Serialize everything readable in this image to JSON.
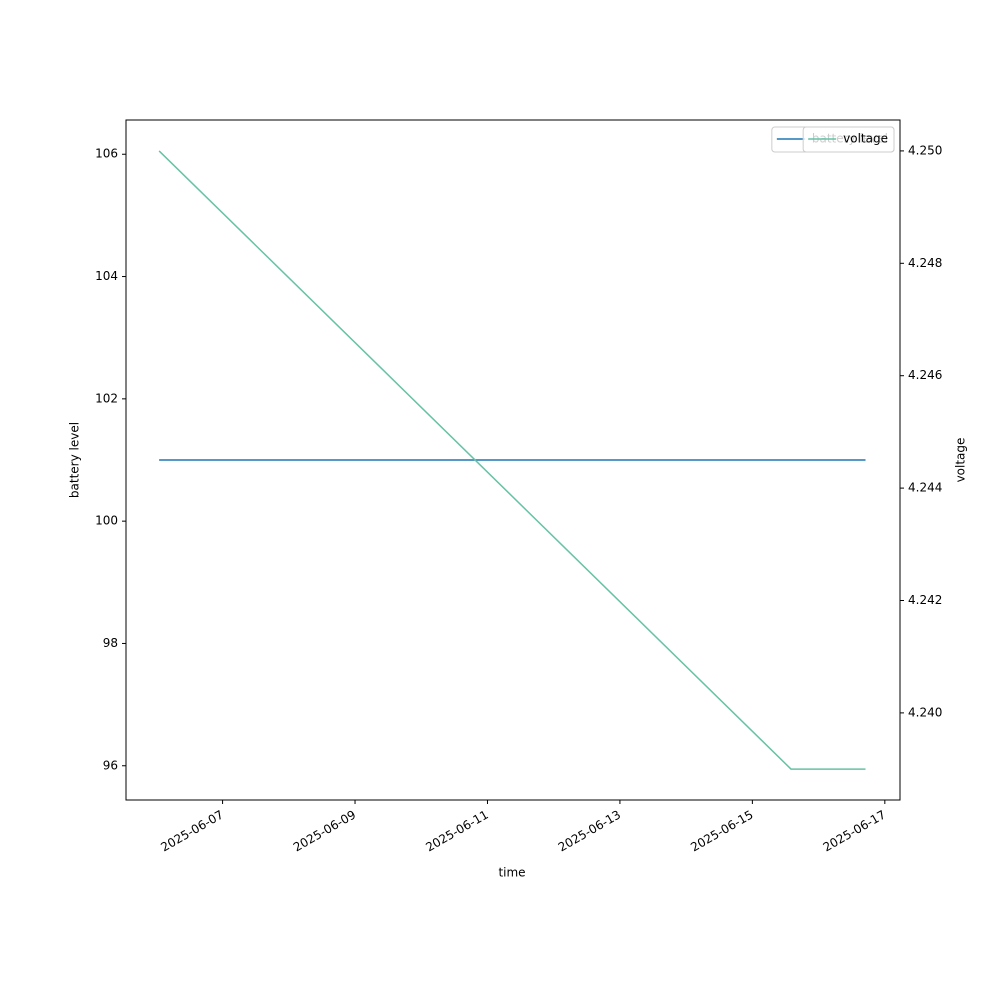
{
  "chart_data": {
    "type": "line",
    "x_label": "time",
    "y_label": "battery level",
    "y2_label": "voltage",
    "x": [
      "2025-06-06T01:00",
      "2025-06-15T14:00",
      "2025-06-16T17:00"
    ],
    "series": [
      {
        "name": "battery level",
        "color": "#1f77b4",
        "values": [
          101,
          101,
          101
        ],
        "axis": "y"
      },
      {
        "name": "voltage",
        "color": "#66c2a5",
        "values": [
          4.25,
          4.239,
          4.239
        ],
        "axis": "y2"
      }
    ],
    "xlim": [
      "2025-06-05T13:00",
      "2025-06-17T05:30"
    ],
    "xticks": [
      "2025-06-07",
      "2025-06-09",
      "2025-06-11",
      "2025-06-13",
      "2025-06-15",
      "2025-06-17"
    ],
    "ylim": [
      95.44,
      106.56
    ],
    "yticks": [
      96,
      98,
      100,
      102,
      104,
      106
    ],
    "y2lim": [
      4.23845,
      4.25055
    ],
    "y2ticks": [
      {
        "value": 4.24,
        "label": "4.240"
      },
      4.242,
      4.244,
      4.246,
      4.248,
      {
        "value": 4.25,
        "label": "4.250"
      }
    ],
    "grid": false,
    "legend": "upper right"
  }
}
